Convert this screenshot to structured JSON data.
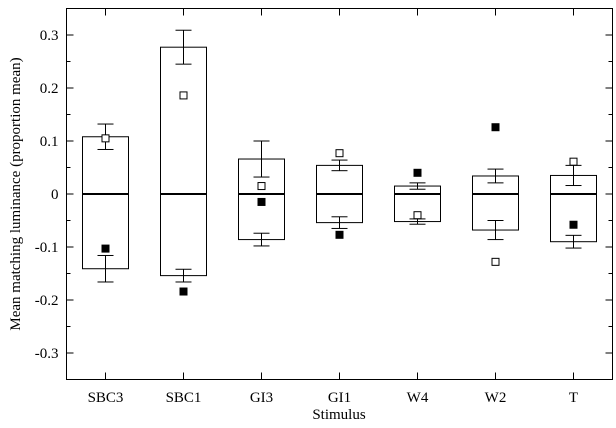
{
  "chart_data": {
    "type": "bar",
    "title": "",
    "xlabel": "Stimulus",
    "ylabel": "Mean matching luminance (proportion mean)",
    "ylim": [
      -0.35,
      0.35
    ],
    "yticks": [
      0.3,
      0.2,
      0.1,
      0,
      -0.1,
      -0.2,
      -0.3
    ],
    "ytick_labels": [
      "0.3",
      "0.2",
      "0.1",
      "0",
      "-0.1",
      "-0.2",
      "-0.3"
    ],
    "grid": false,
    "legend": "none",
    "categories": [
      "SBC3",
      "SBC1",
      "GI3",
      "GI1",
      "W4",
      "W2",
      "T"
    ],
    "series": [
      {
        "marker": "bar-range",
        "upper": [
          0.108,
          0.277,
          0.066,
          0.054,
          0.015,
          0.034,
          0.035
        ],
        "lower": [
          -0.141,
          -0.154,
          -0.086,
          -0.054,
          -0.052,
          -0.068,
          -0.09
        ],
        "upper_err": [
          0.024,
          0.032,
          0.034,
          0.01,
          0.006,
          0.013,
          0.019
        ],
        "lower_err": [
          0.025,
          0.012,
          0.012,
          0.011,
          0.005,
          0.018,
          0.012
        ]
      },
      {
        "marker": "open-square",
        "values": [
          0.105,
          0.186,
          0.015,
          0.077,
          -0.04,
          -0.128,
          0.061
        ]
      },
      {
        "marker": "filled-square",
        "values": [
          -0.103,
          -0.184,
          -0.015,
          -0.077,
          0.04,
          0.126,
          -0.058
        ]
      }
    ]
  }
}
